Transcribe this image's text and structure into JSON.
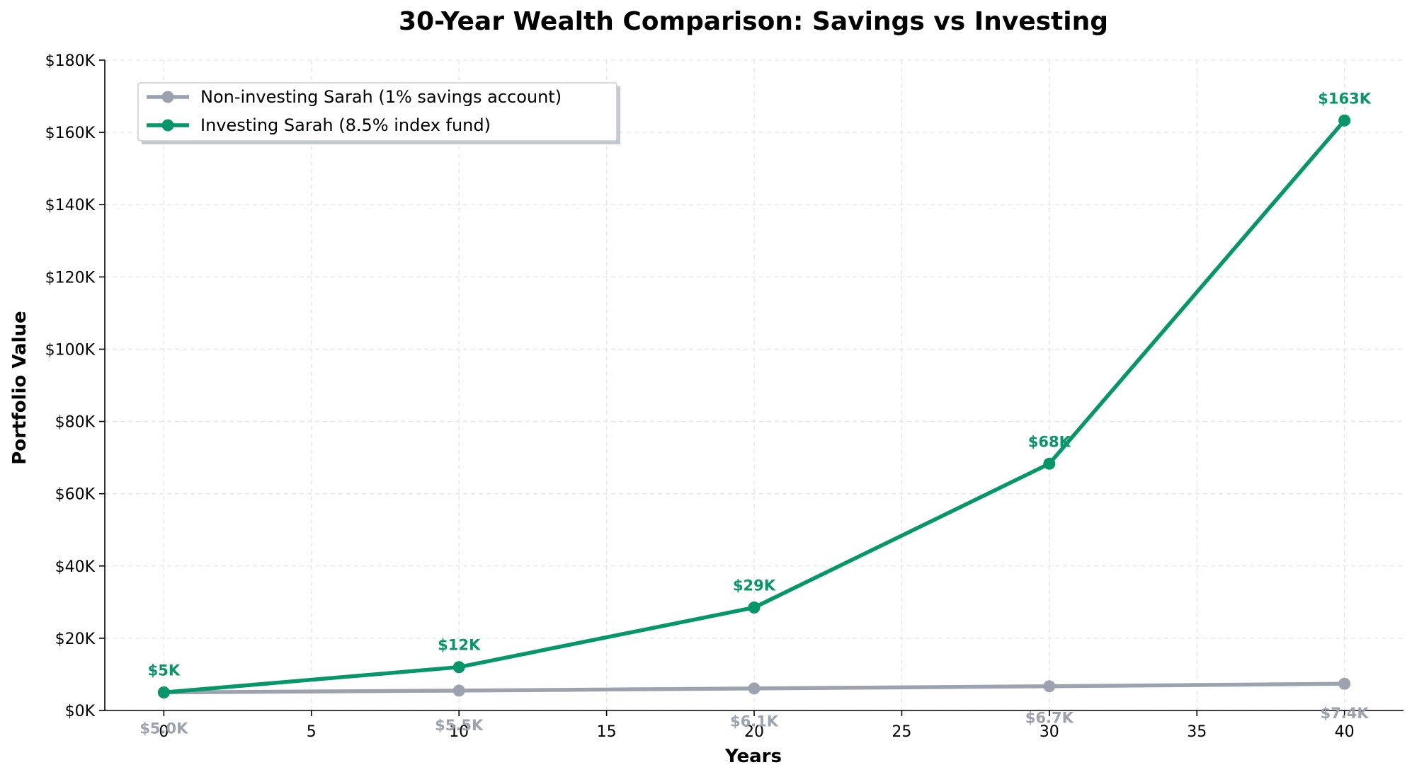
{
  "chart_data": {
    "type": "line",
    "title": "30-Year Wealth Comparison: Savings vs Investing",
    "xlabel": "Years",
    "ylabel": "Portfolio Value",
    "x": [
      0,
      10,
      20,
      30,
      40
    ],
    "xlim": [
      -2,
      42
    ],
    "ylim": [
      0,
      180000
    ],
    "xticks": [
      0,
      5,
      10,
      15,
      20,
      25,
      30,
      35,
      40
    ],
    "xtick_labels": [
      "0",
      "5",
      "10",
      "15",
      "20",
      "25",
      "30",
      "35",
      "40"
    ],
    "yticks": [
      0,
      20000,
      40000,
      60000,
      80000,
      100000,
      120000,
      140000,
      160000,
      180000
    ],
    "ytick_labels": [
      "$0K",
      "$20K",
      "$40K",
      "$60K",
      "$80K",
      "$100K",
      "$120K",
      "$140K",
      "$160K",
      "$180K"
    ],
    "grid": true,
    "legend_position": "top-left",
    "series": [
      {
        "name": "Non-investing Sarah (1% savings account)",
        "color": "#9ca3af",
        "values": [
          5000,
          5500,
          6100,
          6700,
          7400
        ],
        "labels": [
          "$5.0K",
          "$5.5K",
          "$6.1K",
          "$6.7K",
          "$7.4K"
        ],
        "label_placement": "below"
      },
      {
        "name": "Investing Sarah (8.5% index fund)",
        "color": "#059669",
        "values": [
          5000,
          12000,
          28500,
          68300,
          163300
        ],
        "labels": [
          "$5K",
          "$12K",
          "$29K",
          "$68K",
          "$163K"
        ],
        "label_placement": "above"
      }
    ]
  }
}
